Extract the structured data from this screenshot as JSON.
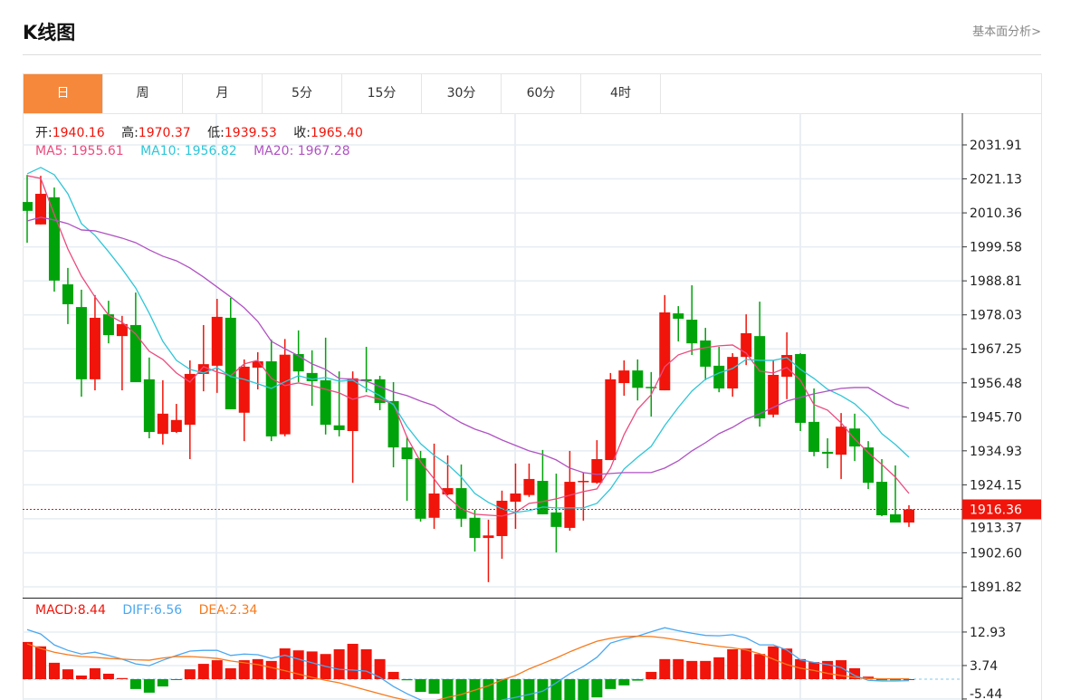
{
  "header": {
    "title": "K线图",
    "more_link": "基本面分析>"
  },
  "tabs": [
    {
      "label": "日",
      "active": true
    },
    {
      "label": "周"
    },
    {
      "label": "月"
    },
    {
      "label": "5分"
    },
    {
      "label": "15分"
    },
    {
      "label": "30分"
    },
    {
      "label": "60分"
    },
    {
      "label": "4时"
    }
  ],
  "ohlc_info": {
    "open_label": "开:",
    "open": "1940.16",
    "high_label": "高:",
    "high": "1970.37",
    "low_label": "低:",
    "low": "1939.53",
    "close_label": "收:",
    "close": "1965.40"
  },
  "ma_info": {
    "ma5_label": "MA5:",
    "ma5": "1955.61",
    "ma10_label": "MA10:",
    "ma10": "1956.82",
    "ma20_label": "MA20:",
    "ma20": "1967.28"
  },
  "macd_info": {
    "macd_label": "MACD:",
    "macd": "8.44",
    "diff_label": "DIFF:",
    "diff": "6.56",
    "dea_label": "DEA:",
    "dea": "2.34"
  },
  "colors": {
    "up": "#f0140a",
    "down": "#00a30a",
    "ma5": "#ec4a7e",
    "ma10": "#2ec6d8",
    "ma20": "#b052c2",
    "diff": "#4aa8f0",
    "dea": "#f77a1c",
    "accent": "#f5883b"
  },
  "chart_data": [
    {
      "type": "candlestick",
      "title": "K线图",
      "y_ticks": [
        "2031.91",
        "2021.13",
        "2010.36",
        "1999.58",
        "1988.81",
        "1978.03",
        "1967.25",
        "1956.48",
        "1945.70",
        "1934.93",
        "1924.15",
        "1913.37",
        "1902.60",
        "1891.82"
      ],
      "ylim": [
        1891.82,
        2031.91
      ],
      "last_price": "1916.36",
      "candles_ohlc": [
        [
          2013.8,
          2022.4,
          2000.9,
          2011.0
        ],
        [
          2006.7,
          2022.1,
          2006.7,
          2016.4
        ],
        [
          2015.3,
          2018.4,
          1985.4,
          1988.9
        ],
        [
          1987.7,
          1992.9,
          1975.1,
          1981.4
        ],
        [
          1980.5,
          1986.0,
          1952.1,
          1957.6
        ],
        [
          1957.6,
          1984.3,
          1954.1,
          1977.1
        ],
        [
          1978.2,
          1982.5,
          1969.0,
          1971.6
        ],
        [
          1971.3,
          1977.7,
          1954.1,
          1975.1
        ],
        [
          1974.8,
          1985.1,
          1956.7,
          1956.7
        ],
        [
          1957.6,
          1964.5,
          1938.9,
          1940.9
        ],
        [
          1940.3,
          1957.3,
          1936.9,
          1946.7
        ],
        [
          1940.9,
          1949.8,
          1940.6,
          1944.7
        ],
        [
          1943.2,
          1963.6,
          1932.3,
          1959.3
        ],
        [
          1959.3,
          1974.8,
          1953.8,
          1962.4
        ],
        [
          1961.9,
          1983.1,
          1953.3,
          1977.4
        ],
        [
          1977.1,
          1983.4,
          1948.1,
          1948.1
        ],
        [
          1947.0,
          1963.9,
          1938.0,
          1961.6
        ],
        [
          1961.3,
          1966.2,
          1954.4,
          1963.3
        ],
        [
          1963.3,
          1970.2,
          1938.0,
          1939.5
        ],
        [
          1940.16,
          1970.37,
          1939.53,
          1965.4
        ],
        [
          1965.6,
          1973.1,
          1956.7,
          1960.1
        ],
        [
          1959.6,
          1966.8,
          1949.2,
          1957.0
        ],
        [
          1957.3,
          1970.8,
          1940.1,
          1943.2
        ],
        [
          1943.0,
          1960.1,
          1939.5,
          1941.5
        ],
        [
          1941.2,
          1960.1,
          1924.8,
          1957.9
        ],
        [
          1957.6,
          1967.9,
          1953.5,
          1957.0
        ],
        [
          1957.6,
          1958.7,
          1947.8,
          1950.1
        ],
        [
          1950.7,
          1956.7,
          1929.7,
          1936.0
        ],
        [
          1936.0,
          1939.5,
          1919.1,
          1932.3
        ],
        [
          1932.6,
          1934.9,
          1912.5,
          1913.4
        ],
        [
          1913.7,
          1937.2,
          1910.2,
          1921.4
        ],
        [
          1921.1,
          1933.5,
          1920.8,
          1923.1
        ],
        [
          1923.1,
          1930.6,
          1910.8,
          1913.4
        ],
        [
          1913.7,
          1916.2,
          1903.0,
          1907.3
        ],
        [
          1907.3,
          1913.1,
          1893.3,
          1908.1
        ],
        [
          1907.9,
          1922.3,
          1900.7,
          1919.1
        ],
        [
          1918.8,
          1930.9,
          1910.2,
          1921.4
        ],
        [
          1920.9,
          1930.9,
          1920.3,
          1926.0
        ],
        [
          1925.4,
          1935.2,
          1914.8,
          1914.8
        ],
        [
          1915.4,
          1927.7,
          1902.7,
          1910.8
        ],
        [
          1910.5,
          1934.9,
          1909.6,
          1925.1
        ],
        [
          1925.1,
          1928.0,
          1912.8,
          1925.4
        ],
        [
          1924.8,
          1938.3,
          1924.5,
          1932.3
        ],
        [
          1932.0,
          1959.6,
          1932.0,
          1957.6
        ],
        [
          1956.4,
          1963.6,
          1952.4,
          1960.4
        ],
        [
          1960.4,
          1963.9,
          1950.9,
          1954.9
        ],
        [
          1955.2,
          1959.9,
          1945.8,
          1954.9
        ],
        [
          1954.1,
          1984.3,
          1954.1,
          1978.8
        ],
        [
          1978.5,
          1980.8,
          1969.6,
          1976.8
        ],
        [
          1976.5,
          1987.4,
          1965.3,
          1969.0
        ],
        [
          1969.9,
          1973.9,
          1957.3,
          1961.6
        ],
        [
          1961.9,
          1967.9,
          1953.5,
          1954.7
        ],
        [
          1954.7,
          1965.9,
          1952.1,
          1964.7
        ],
        [
          1964.7,
          1978.2,
          1962.1,
          1972.2
        ],
        [
          1971.3,
          1982.2,
          1942.6,
          1945.2
        ],
        [
          1946.4,
          1963.6,
          1945.5,
          1959.0
        ],
        [
          1958.4,
          1972.5,
          1951.3,
          1965.3
        ],
        [
          1965.6,
          1965.9,
          1941.2,
          1943.8
        ],
        [
          1944.1,
          1954.7,
          1933.2,
          1934.6
        ],
        [
          1934.6,
          1938.9,
          1929.4,
          1934.0
        ],
        [
          1933.7,
          1946.9,
          1926.0,
          1942.6
        ],
        [
          1942.0,
          1946.7,
          1931.7,
          1936.3
        ],
        [
          1936.0,
          1938.0,
          1922.8,
          1924.8
        ],
        [
          1925.1,
          1932.3,
          1914.2,
          1914.5
        ],
        [
          1914.8,
          1930.3,
          1912.2,
          1912.2
        ],
        [
          1912.2,
          1917.7,
          1910.8,
          1916.36
        ]
      ],
      "series": [
        {
          "name": "MA5",
          "values": [
            2022.16,
            2021.3,
            2009.82,
            1998.92,
            1990.31,
            1983.7,
            1977.96,
            1975.67,
            1971.94,
            1966.48,
            1963.9,
            1959.6,
            1956.73,
            1961.6,
            1959.88,
            1958.73,
            1962.47,
            1963.61,
            1957.87,
            1955.61,
            1956.44,
            1955.58,
            1954.43,
            1953.28,
            1951.27,
            1952.42,
            1951.27,
            1949.84,
            1939.22,
            1931.47,
            1926.02,
            1920.28,
            1916.55,
            1914.82,
            1914.54,
            1914.25,
            1915.4,
            1918.27,
            1918.84,
            1919.7,
            1920.85,
            1922.0,
            1922.86,
            1929.46,
            1940.08,
            1948.12,
            1952.71,
            1961.6,
            1965.34,
            1966.77,
            1967.63,
            1968.21,
            1968.49,
            1965.91,
            1960.17,
            1959.6,
            1961.32,
            1957.3,
            1949.55,
            1947.83,
            1943.81,
            1938.65,
            1934.34,
            1930.61,
            1926.59,
            1921.43
          ]
        },
        {
          "name": "MA10",
          "values": [
            2022.74,
            2024.75,
            2022.45,
            2016.42,
            2006.95,
            2003.22,
            1998.05,
            1992.6,
            1986.57,
            1978.54,
            1969.64,
            1963.61,
            1960.74,
            1959.6,
            1961.3,
            1958.45,
            1957.59,
            1956.15,
            1954.72,
            1956.82,
            1958.73,
            1957.59,
            1958.16,
            1957.01,
            1957.3,
            1954.72,
            1952.42,
            1949.55,
            1942.66,
            1937.21,
            1933.48,
            1930.61,
            1926.59,
            1921.43,
            1918.56,
            1916.55,
            1915.4,
            1915.97,
            1917.12,
            1916.83,
            1916.83,
            1916.83,
            1918.27,
            1922.86,
            1929.17,
            1932.9,
            1936.35,
            1942.95,
            1948.69,
            1953.86,
            1957.59,
            1959.6,
            1961.03,
            1963.9,
            1963.61,
            1963.61,
            1964.48,
            1960.74,
            1957.87,
            1954.43,
            1952.42,
            1949.84,
            1945.82,
            1940.37,
            1936.93,
            1932.9
          ]
        },
        {
          "name": "MA20",
          "values": [
            2007.81,
            2008.96,
            2008.1,
            2006.95,
            2004.94,
            2004.66,
            2003.51,
            2002.36,
            2000.92,
            1998.63,
            1996.62,
            1995.18,
            1992.89,
            1990.02,
            1986.86,
            1983.7,
            1980.26,
            1975.96,
            1969.64,
            1967.28,
            1965.05,
            1962.47,
            1960.74,
            1957.87,
            1957.59,
            1957.01,
            1955.29,
            1953.57,
            1952.42,
            1950.7,
            1949.27,
            1946.39,
            1943.81,
            1941.8,
            1940.37,
            1938.36,
            1936.64,
            1934.91,
            1933.77,
            1932.04,
            1929.46,
            1928.03,
            1927.45,
            1927.74,
            1928.03,
            1928.03,
            1928.03,
            1929.46,
            1931.76,
            1934.91,
            1937.5,
            1940.37,
            1942.38,
            1944.96,
            1946.68,
            1948.69,
            1950.7,
            1951.85,
            1953.0,
            1953.86,
            1954.72,
            1955.0,
            1955.0,
            1952.42,
            1949.84,
            1948.4
          ]
        }
      ]
    },
    {
      "type": "bar+line",
      "title": "MACD",
      "y_ticks": [
        "12.93",
        "3.74",
        "-5.44"
      ],
      "ylim": [
        -5.44,
        16.5
      ],
      "macd": [
        10.2,
        9.0,
        4.5,
        2.7,
        1.0,
        3.0,
        1.5,
        0.3,
        -2.7,
        -3.7,
        -2.0,
        -0.1,
        2.7,
        4.2,
        5.2,
        3.0,
        5.2,
        5.5,
        5.0,
        8.44,
        7.9,
        7.6,
        6.9,
        8.2,
        9.7,
        8.2,
        5.5,
        2.0,
        -0.3,
        -3.5,
        -4.0,
        -7,
        -8,
        -9,
        -10,
        -10,
        -10,
        -9,
        -9,
        -8,
        -7,
        -6,
        -5,
        -2.7,
        -1.7,
        -0.4,
        2.0,
        5.5,
        5.5,
        5.0,
        5.0,
        6.0,
        8.2,
        8.4,
        6.9,
        9.0,
        8.4,
        5.5,
        4.7,
        5.0,
        5.2,
        3.0,
        0.7,
        -0.3,
        -0.3,
        0
      ],
      "diff": [
        13.6,
        12.4,
        9.4,
        7.9,
        6.9,
        7.4,
        6.5,
        5.5,
        4.2,
        3.7,
        5.2,
        6.5,
        7.7,
        7.9,
        7.9,
        6.5,
        6.9,
        6.7,
        5.7,
        6.56,
        5.5,
        4.5,
        3.5,
        2.7,
        2.5,
        2.2,
        0.5,
        -2.0,
        -4.0,
        -5.7,
        -7,
        -8.5,
        -9.5,
        -9.5,
        -8.5,
        -5.7,
        -5.0,
        -4.2,
        -3.3,
        -1.0,
        1.5,
        3.5,
        6.0,
        9.9,
        11.0,
        11.8,
        13.0,
        14.1,
        13.3,
        12.6,
        12.0,
        11.9,
        12.2,
        11.3,
        9.4,
        9.4,
        8.0,
        5.3,
        4.6,
        4.0,
        3.2,
        1.0,
        -0.3,
        -0.5,
        -0.5,
        -0.4
      ],
      "dea": [
        9.7,
        8.4,
        7.4,
        6.7,
        6.2,
        6.0,
        5.7,
        5.5,
        5.3,
        5.2,
        5.8,
        6.2,
        6.2,
        6.0,
        5.7,
        5.0,
        4.5,
        4.0,
        3.2,
        2.34,
        1.4,
        0.5,
        -0.3,
        -1.0,
        -2.0,
        -3.0,
        -4.0,
        -5.0,
        -5.8,
        -6.2,
        -6.0,
        -5.0,
        -4.2,
        -3.0,
        -1.8,
        -0.2,
        1.0,
        2.8,
        4.3,
        5.8,
        7.5,
        9.0,
        10.4,
        11.2,
        11.7,
        11.8,
        11.7,
        11.3,
        10.7,
        10.1,
        9.5,
        9.0,
        8.6,
        8.0,
        7.0,
        5.5,
        4.0,
        3.0,
        2.4,
        1.6,
        1.0,
        0.5,
        0.2,
        0.1,
        0.1,
        0.1
      ]
    }
  ]
}
